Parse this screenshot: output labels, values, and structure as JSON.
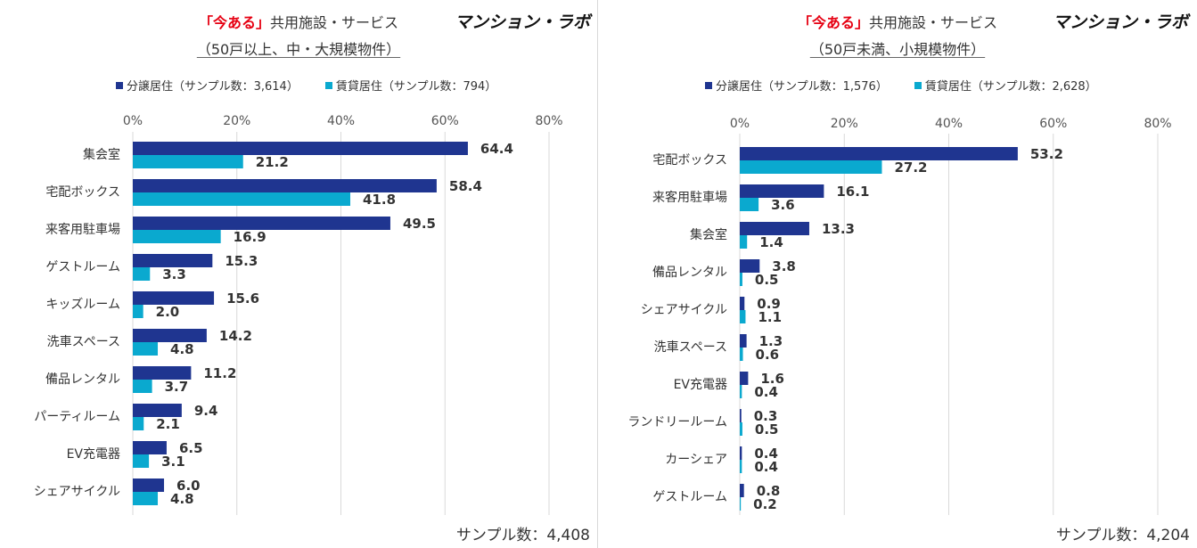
{
  "colors": {
    "bunjo": "#1f3590",
    "chintai": "#0aa9cf",
    "grid": "#d9d9d9",
    "accent": "#e60012"
  },
  "brand_name": "マンション・ラボ",
  "chart_data": [
    {
      "type": "bar",
      "title_accent": "「今ある」",
      "title": "共用施設・サービス",
      "subtitle": "（50戸以上、中・大規模物件）",
      "sample_total": "サンプル数：4,408",
      "xlim": [
        0,
        80
      ],
      "ticks": [
        "0%",
        "20%",
        "40%",
        "60%",
        "80%"
      ],
      "legend": [
        {
          "name": "分譲居住（サンプル数：3,614）",
          "color": "#1f3590"
        },
        {
          "name": "賃貸居住（サンプル数：794）",
          "color": "#0aa9cf"
        }
      ],
      "categories": [
        "集会室",
        "宅配ボックス",
        "来客用駐車場",
        "ゲストルーム",
        "キッズルーム",
        "洗車スペース",
        "備品レンタル",
        "パーティルーム",
        "EV充電器",
        "シェアサイクル"
      ],
      "series": [
        {
          "name": "分譲居住",
          "values": [
            64.4,
            58.4,
            49.5,
            15.3,
            15.6,
            14.2,
            11.2,
            9.4,
            6.5,
            6.0
          ],
          "labels": [
            "64.4",
            "58.4",
            "49.5",
            "15.3",
            "15.6",
            "14.2",
            "11.2",
            "9.4",
            "6.5",
            "6.0"
          ]
        },
        {
          "name": "賃貸居住",
          "values": [
            21.2,
            41.8,
            16.9,
            3.3,
            2.0,
            4.8,
            3.7,
            2.1,
            3.1,
            4.8
          ],
          "labels": [
            "21.2",
            "41.8",
            "16.9",
            "3.3",
            "2.0",
            "4.8",
            "3.7",
            "2.1",
            "3.1",
            "4.8"
          ]
        }
      ]
    },
    {
      "type": "bar",
      "title_accent": "「今ある」",
      "title": "共用施設・サービス",
      "subtitle": "（50戸未満、小規模物件）",
      "sample_total": "サンプル数：4,204",
      "xlim": [
        0,
        80
      ],
      "ticks": [
        "0%",
        "20%",
        "40%",
        "60%",
        "80%"
      ],
      "legend": [
        {
          "name": "分譲居住（サンプル数：1,576）",
          "color": "#1f3590"
        },
        {
          "name": "賃貸居住（サンプル数：2,628）",
          "color": "#0aa9cf"
        }
      ],
      "categories": [
        "宅配ボックス",
        "来客用駐車場",
        "集会室",
        "備品レンタル",
        "シェアサイクル",
        "洗車スペース",
        "EV充電器",
        "ランドリールーム",
        "カーシェア",
        "ゲストルーム"
      ],
      "series": [
        {
          "name": "分譲居住",
          "values": [
            53.2,
            16.1,
            13.3,
            3.8,
            0.9,
            1.3,
            1.6,
            0.3,
            0.4,
            0.8
          ],
          "labels": [
            "53.2",
            "16.1",
            "13.3",
            "3.8",
            "0.9",
            "1.3",
            "1.6",
            "0.3",
            "0.4",
            "0.8"
          ]
        },
        {
          "name": "賃貸居住",
          "values": [
            27.2,
            3.6,
            1.4,
            0.5,
            1.1,
            0.6,
            0.4,
            0.5,
            0.4,
            0.2
          ],
          "labels": [
            "27.2",
            "3.6",
            "1.4",
            "0.5",
            "1.1",
            "0.6",
            "0.4",
            "0.5",
            "0.4",
            "0.2"
          ]
        }
      ]
    }
  ]
}
